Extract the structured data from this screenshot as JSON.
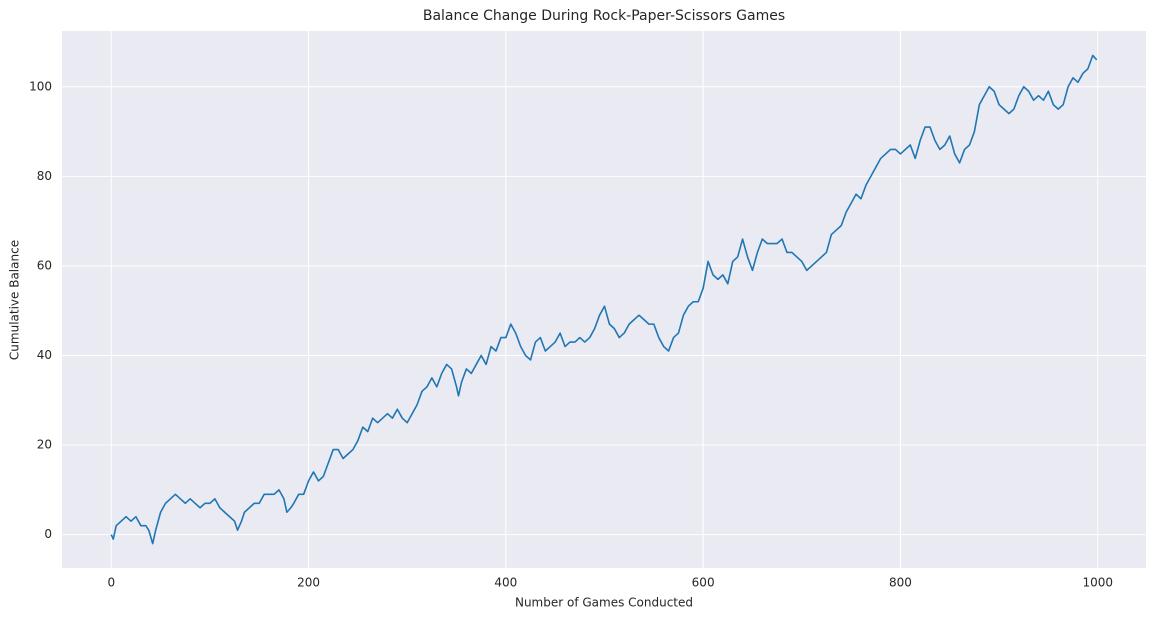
{
  "chart_data": {
    "type": "line",
    "title": "Balance Change During Rock-Paper-Scissors Games",
    "xlabel": "Number of Games Conducted",
    "ylabel": "Cumulative Balance",
    "x": [
      0,
      2,
      5,
      10,
      15,
      20,
      25,
      30,
      35,
      38,
      42,
      45,
      50,
      55,
      60,
      65,
      70,
      75,
      80,
      85,
      90,
      95,
      100,
      105,
      110,
      115,
      120,
      125,
      128,
      132,
      135,
      140,
      145,
      150,
      155,
      160,
      165,
      170,
      175,
      178,
      182,
      185,
      190,
      195,
      200,
      205,
      210,
      215,
      220,
      225,
      230,
      235,
      240,
      245,
      250,
      255,
      260,
      265,
      270,
      275,
      280,
      285,
      290,
      295,
      300,
      305,
      310,
      315,
      320,
      325,
      330,
      335,
      340,
      345,
      350,
      352,
      355,
      360,
      365,
      370,
      375,
      380,
      385,
      390,
      395,
      400,
      405,
      410,
      415,
      420,
      425,
      430,
      435,
      440,
      445,
      450,
      455,
      460,
      465,
      470,
      475,
      480,
      485,
      490,
      495,
      500,
      505,
      510,
      515,
      520,
      525,
      530,
      535,
      540,
      545,
      550,
      555,
      560,
      565,
      570,
      575,
      580,
      585,
      590,
      595,
      600,
      605,
      610,
      615,
      620,
      625,
      630,
      635,
      640,
      645,
      650,
      655,
      660,
      665,
      670,
      675,
      680,
      685,
      690,
      695,
      700,
      705,
      710,
      715,
      720,
      725,
      730,
      735,
      740,
      745,
      750,
      755,
      760,
      765,
      770,
      775,
      780,
      785,
      790,
      795,
      800,
      805,
      810,
      815,
      820,
      825,
      830,
      835,
      840,
      845,
      850,
      855,
      860,
      865,
      870,
      875,
      880,
      885,
      890,
      895,
      900,
      905,
      910,
      915,
      920,
      925,
      930,
      935,
      940,
      945,
      950,
      955,
      960,
      965,
      970,
      975,
      980,
      985,
      990,
      995,
      999
    ],
    "values": [
      0,
      -1,
      2,
      3,
      4,
      3,
      4,
      2,
      2,
      1,
      -2,
      1,
      5,
      7,
      8,
      9,
      8,
      7,
      8,
      7,
      6,
      7,
      7,
      8,
      6,
      5,
      4,
      3,
      1,
      3,
      5,
      6,
      7,
      7,
      9,
      9,
      9,
      10,
      8,
      5,
      6,
      7,
      9,
      9,
      12,
      14,
      12,
      13,
      16,
      19,
      19,
      17,
      18,
      19,
      21,
      24,
      23,
      26,
      25,
      26,
      27,
      26,
      28,
      26,
      25,
      27,
      29,
      32,
      33,
      35,
      33,
      36,
      38,
      37,
      33,
      31,
      34,
      37,
      36,
      38,
      40,
      38,
      42,
      41,
      44,
      44,
      47,
      45,
      42,
      40,
      39,
      43,
      44,
      41,
      42,
      43,
      45,
      42,
      43,
      43,
      44,
      43,
      44,
      46,
      49,
      51,
      47,
      46,
      44,
      45,
      47,
      48,
      49,
      48,
      47,
      47,
      44,
      42,
      41,
      44,
      45,
      49,
      51,
      52,
      52,
      55,
      61,
      58,
      57,
      58,
      56,
      61,
      62,
      66,
      62,
      59,
      63,
      66,
      65,
      65,
      65,
      66,
      63,
      63,
      62,
      61,
      59,
      60,
      61,
      62,
      63,
      67,
      68,
      69,
      72,
      74,
      76,
      75,
      78,
      80,
      82,
      84,
      85,
      86,
      86,
      85,
      86,
      87,
      84,
      88,
      91,
      91,
      88,
      86,
      87,
      89,
      85,
      83,
      86,
      87,
      90,
      96,
      98,
      100,
      99,
      96,
      95,
      94,
      95,
      98,
      100,
      99,
      97,
      98,
      97,
      99,
      96,
      95,
      96,
      100,
      102,
      101,
      103,
      104,
      107,
      106
    ],
    "color": "#1f77b4",
    "xlim": [
      -49.95,
      1048.95
    ],
    "ylim": [
      -7.45,
      112.45
    ],
    "xticks": [
      0,
      200,
      400,
      600,
      800,
      1000
    ],
    "yticks": [
      0,
      20,
      40,
      60,
      80,
      100
    ],
    "grid": true
  }
}
